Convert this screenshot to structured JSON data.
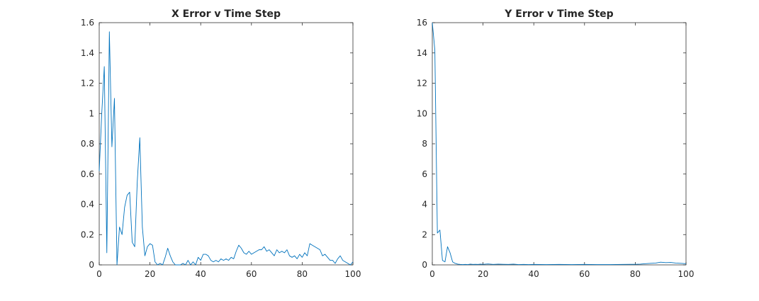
{
  "chart_data": [
    {
      "type": "line",
      "title": "X Error v Time Step",
      "xlabel": "",
      "ylabel": "",
      "xlim": [
        0,
        100
      ],
      "ylim": [
        0,
        1.6
      ],
      "xticks": [
        0,
        20,
        40,
        60,
        80,
        100
      ],
      "yticks": [
        0,
        0.2,
        0.4,
        0.6,
        0.8,
        1,
        1.2,
        1.4,
        1.6
      ],
      "xtick_labels": [
        "0",
        "20",
        "40",
        "60",
        "80",
        "100"
      ],
      "ytick_labels": [
        "0",
        "0.2",
        "0.4",
        "0.6",
        "0.8",
        "1",
        "1.2",
        "1.4",
        "1.6"
      ],
      "grid": false,
      "color": "#0072BD",
      "series": [
        {
          "x": [
            0,
            1,
            2,
            3,
            4,
            5,
            6,
            7,
            8,
            9,
            10,
            11,
            12,
            13,
            14,
            15,
            16,
            17,
            18,
            19,
            20,
            21,
            22,
            23,
            24,
            25,
            26,
            27,
            28,
            29,
            30,
            31,
            32,
            33,
            34,
            35,
            36,
            37,
            38,
            39,
            40,
            41,
            42,
            43,
            44,
            45,
            46,
            47,
            48,
            49,
            50,
            51,
            52,
            53,
            54,
            55,
            56,
            57,
            58,
            59,
            60,
            61,
            62,
            63,
            64,
            65,
            66,
            67,
            68,
            69,
            70,
            71,
            72,
            73,
            74,
            75,
            76,
            77,
            78,
            79,
            80,
            81,
            82,
            83,
            84,
            85,
            86,
            87,
            88,
            89,
            90,
            91,
            92,
            93,
            94,
            95,
            96,
            97,
            98,
            99,
            100
          ],
          "y": [
            0.62,
            1.0,
            1.31,
            0.08,
            1.54,
            0.78,
            1.1,
            0.0,
            0.25,
            0.2,
            0.38,
            0.46,
            0.48,
            0.15,
            0.12,
            0.55,
            0.84,
            0.25,
            0.06,
            0.12,
            0.14,
            0.13,
            0.02,
            0.0,
            0.01,
            0.0,
            0.05,
            0.11,
            0.06,
            0.02,
            0.0,
            0.0,
            0.0,
            0.01,
            0.0,
            0.03,
            0.0,
            0.02,
            0.0,
            0.05,
            0.03,
            0.07,
            0.07,
            0.06,
            0.03,
            0.02,
            0.03,
            0.02,
            0.04,
            0.03,
            0.04,
            0.03,
            0.05,
            0.04,
            0.09,
            0.13,
            0.11,
            0.08,
            0.07,
            0.09,
            0.07,
            0.08,
            0.09,
            0.1,
            0.1,
            0.12,
            0.09,
            0.1,
            0.08,
            0.06,
            0.1,
            0.08,
            0.09,
            0.08,
            0.1,
            0.06,
            0.05,
            0.06,
            0.04,
            0.07,
            0.05,
            0.08,
            0.06,
            0.14,
            0.13,
            0.12,
            0.11,
            0.1,
            0.06,
            0.07,
            0.05,
            0.03,
            0.03,
            0.01,
            0.04,
            0.06,
            0.03,
            0.02,
            0.01,
            0.0,
            0.02
          ]
        }
      ]
    },
    {
      "type": "line",
      "title": "Y Error v Time Step",
      "xlabel": "",
      "ylabel": "",
      "xlim": [
        0,
        100
      ],
      "ylim": [
        0,
        16
      ],
      "xticks": [
        0,
        20,
        40,
        60,
        80,
        100
      ],
      "yticks": [
        0,
        2,
        4,
        6,
        8,
        10,
        12,
        14,
        16
      ],
      "xtick_labels": [
        "0",
        "20",
        "40",
        "60",
        "80",
        "100"
      ],
      "ytick_labels": [
        "0",
        "2",
        "4",
        "6",
        "8",
        "10",
        "12",
        "14",
        "16"
      ],
      "grid": false,
      "color": "#0072BD",
      "series": [
        {
          "x": [
            0,
            1,
            2,
            3,
            4,
            5,
            6,
            7,
            8,
            9,
            10,
            11,
            12,
            13,
            14,
            15,
            16,
            17,
            18,
            19,
            20,
            22,
            24,
            26,
            28,
            30,
            32,
            34,
            36,
            38,
            40,
            45,
            50,
            55,
            60,
            65,
            70,
            75,
            80,
            82,
            84,
            86,
            88,
            90,
            92,
            94,
            96,
            98,
            100
          ],
          "y": [
            16.0,
            14.2,
            2.1,
            2.3,
            0.3,
            0.2,
            1.2,
            0.8,
            0.2,
            0.1,
            0.05,
            0.03,
            0.02,
            0.03,
            0.02,
            0.05,
            0.03,
            0.04,
            0.03,
            0.05,
            0.04,
            0.06,
            0.03,
            0.05,
            0.04,
            0.03,
            0.05,
            0.02,
            0.03,
            0.02,
            0.03,
            0.02,
            0.03,
            0.02,
            0.03,
            0.02,
            0.02,
            0.03,
            0.04,
            0.05,
            0.08,
            0.1,
            0.12,
            0.18,
            0.15,
            0.16,
            0.12,
            0.1,
            0.08
          ]
        }
      ]
    }
  ]
}
